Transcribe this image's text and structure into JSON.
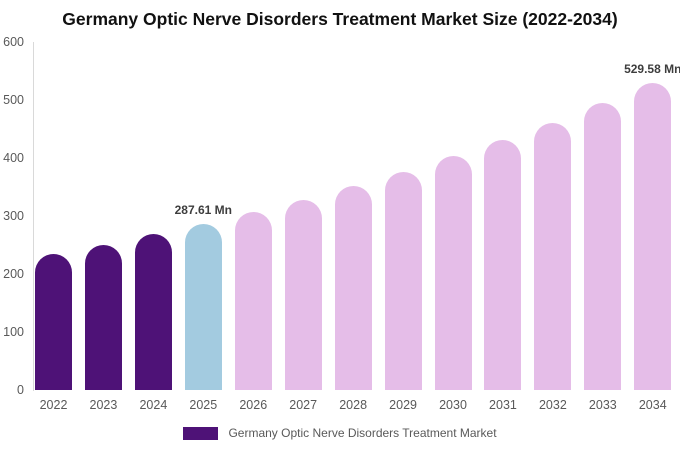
{
  "title": "Germany Optic Nerve Disorders Treatment Market Size (2022-2034)",
  "chart_data": {
    "type": "bar",
    "title": "Germany Optic Nerve Disorders Treatment Market Size (2022-2034)",
    "categories": [
      "2022",
      "2023",
      "2024",
      "2025",
      "2026",
      "2027",
      "2028",
      "2029",
      "2030",
      "2031",
      "2032",
      "2033",
      "2034"
    ],
    "values": [
      235,
      251,
      269,
      287.61,
      308,
      329,
      352,
      377,
      404,
      432,
      462,
      495,
      529.58
    ],
    "bar_colors": [
      "#4E1277",
      "#4E1277",
      "#4E1277",
      "#A3CBE0",
      "#E5BDE8",
      "#E5BDE8",
      "#E5BDE8",
      "#E5BDE8",
      "#E5BDE8",
      "#E5BDE8",
      "#E5BDE8",
      "#E5BDE8",
      "#E5BDE8"
    ],
    "data_labels": [
      {
        "category": "2025",
        "text": "287.61 Mn"
      },
      {
        "category": "2034",
        "text": "529.58 Mn"
      }
    ],
    "xlabel": "",
    "ylabel": "",
    "ylim": [
      0,
      600
    ],
    "y_ticks": [
      0,
      100,
      200,
      300,
      400,
      500,
      600
    ],
    "grid": false,
    "legend_position": "bottom"
  },
  "legend": {
    "items": [
      {
        "label": "Germany Optic Nerve Disorders Treatment Market",
        "color": "#4E1277"
      }
    ]
  },
  "colors": {
    "historical_bar": "#4E1277",
    "current_year_bar": "#A3CBE0",
    "forecast_bar": "#E5BDE8",
    "axis_text": "#595959",
    "axis_line": "#D9D9D9",
    "data_label_text": "#3D3D3D",
    "title_text": "#111111",
    "background": "#FFFFFF"
  }
}
